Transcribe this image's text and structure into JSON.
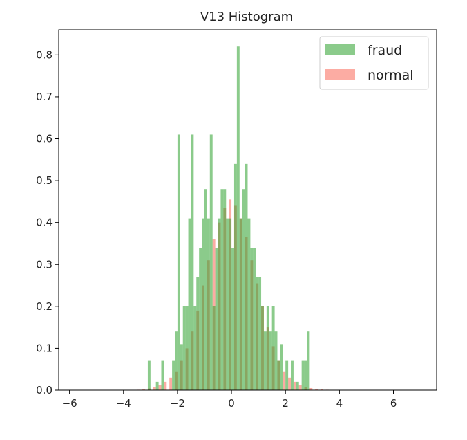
{
  "chart_data": {
    "type": "histogram",
    "title": "V13 Histogram",
    "xlabel": "",
    "ylabel": "",
    "xlim": [
      -6.4,
      7.6
    ],
    "ylim": [
      0,
      0.86
    ],
    "xticks": [
      -6,
      -4,
      -2,
      0,
      2,
      4,
      6
    ],
    "yticks": [
      0.0,
      0.1,
      0.2,
      0.3,
      0.4,
      0.5,
      0.6,
      0.7,
      0.8
    ],
    "grid": false,
    "legend_position": "top-right",
    "bin_width": 0.1,
    "series": [
      {
        "name": "fraud",
        "color": "#2ca02c",
        "opacity": 0.55,
        "bins": [
          [
            -3.1,
            0.07
          ],
          [
            -2.8,
            0.02
          ],
          [
            -2.6,
            0.07
          ],
          [
            -2.2,
            0.07
          ],
          [
            -2.1,
            0.14
          ],
          [
            -2.0,
            0.61
          ],
          [
            -1.9,
            0.11
          ],
          [
            -1.8,
            0.2
          ],
          [
            -1.7,
            0.2
          ],
          [
            -1.6,
            0.41
          ],
          [
            -1.5,
            0.61
          ],
          [
            -1.4,
            0.2
          ],
          [
            -1.3,
            0.27
          ],
          [
            -1.2,
            0.34
          ],
          [
            -1.1,
            0.41
          ],
          [
            -1.0,
            0.48
          ],
          [
            -0.9,
            0.41
          ],
          [
            -0.8,
            0.61
          ],
          [
            -0.7,
            0.2
          ],
          [
            -0.6,
            0.34
          ],
          [
            -0.5,
            0.41
          ],
          [
            -0.4,
            0.48
          ],
          [
            -0.3,
            0.48
          ],
          [
            -0.2,
            0.41
          ],
          [
            -0.1,
            0.41
          ],
          [
            0.0,
            0.34
          ],
          [
            0.1,
            0.54
          ],
          [
            0.2,
            0.82
          ],
          [
            0.3,
            0.41
          ],
          [
            0.4,
            0.48
          ],
          [
            0.5,
            0.54
          ],
          [
            0.6,
            0.41
          ],
          [
            0.7,
            0.34
          ],
          [
            0.8,
            0.34
          ],
          [
            0.9,
            0.27
          ],
          [
            1.0,
            0.27
          ],
          [
            1.1,
            0.2
          ],
          [
            1.2,
            0.14
          ],
          [
            1.3,
            0.2
          ],
          [
            1.4,
            0.14
          ],
          [
            1.5,
            0.2
          ],
          [
            1.6,
            0.14
          ],
          [
            1.7,
            0.07
          ],
          [
            1.8,
            0.11
          ],
          [
            2.0,
            0.07
          ],
          [
            2.2,
            0.07
          ],
          [
            2.4,
            0.02
          ],
          [
            2.6,
            0.07
          ],
          [
            2.7,
            0.07
          ],
          [
            2.8,
            0.14
          ]
        ]
      },
      {
        "name": "normal",
        "color": "#fa8072",
        "opacity": 0.65,
        "bins": [
          [
            -3.5,
            0.001
          ],
          [
            -3.3,
            0.002
          ],
          [
            -3.1,
            0.004
          ],
          [
            -2.9,
            0.007
          ],
          [
            -2.7,
            0.012
          ],
          [
            -2.5,
            0.02
          ],
          [
            -2.3,
            0.03
          ],
          [
            -2.1,
            0.045
          ],
          [
            -1.9,
            0.07
          ],
          [
            -1.7,
            0.1
          ],
          [
            -1.5,
            0.14
          ],
          [
            -1.3,
            0.19
          ],
          [
            -1.1,
            0.25
          ],
          [
            -0.9,
            0.31
          ],
          [
            -0.7,
            0.36
          ],
          [
            -0.5,
            0.4
          ],
          [
            -0.3,
            0.435
          ],
          [
            -0.1,
            0.455
          ],
          [
            0.1,
            0.44
          ],
          [
            0.3,
            0.41
          ],
          [
            0.5,
            0.365
          ],
          [
            0.7,
            0.31
          ],
          [
            0.9,
            0.255
          ],
          [
            1.1,
            0.2
          ],
          [
            1.3,
            0.15
          ],
          [
            1.5,
            0.105
          ],
          [
            1.7,
            0.07
          ],
          [
            1.9,
            0.045
          ],
          [
            2.1,
            0.03
          ],
          [
            2.3,
            0.02
          ],
          [
            2.5,
            0.013
          ],
          [
            2.7,
            0.008
          ],
          [
            2.9,
            0.005
          ],
          [
            3.1,
            0.003
          ],
          [
            3.3,
            0.002
          ],
          [
            3.5,
            0.001
          ]
        ]
      }
    ]
  }
}
